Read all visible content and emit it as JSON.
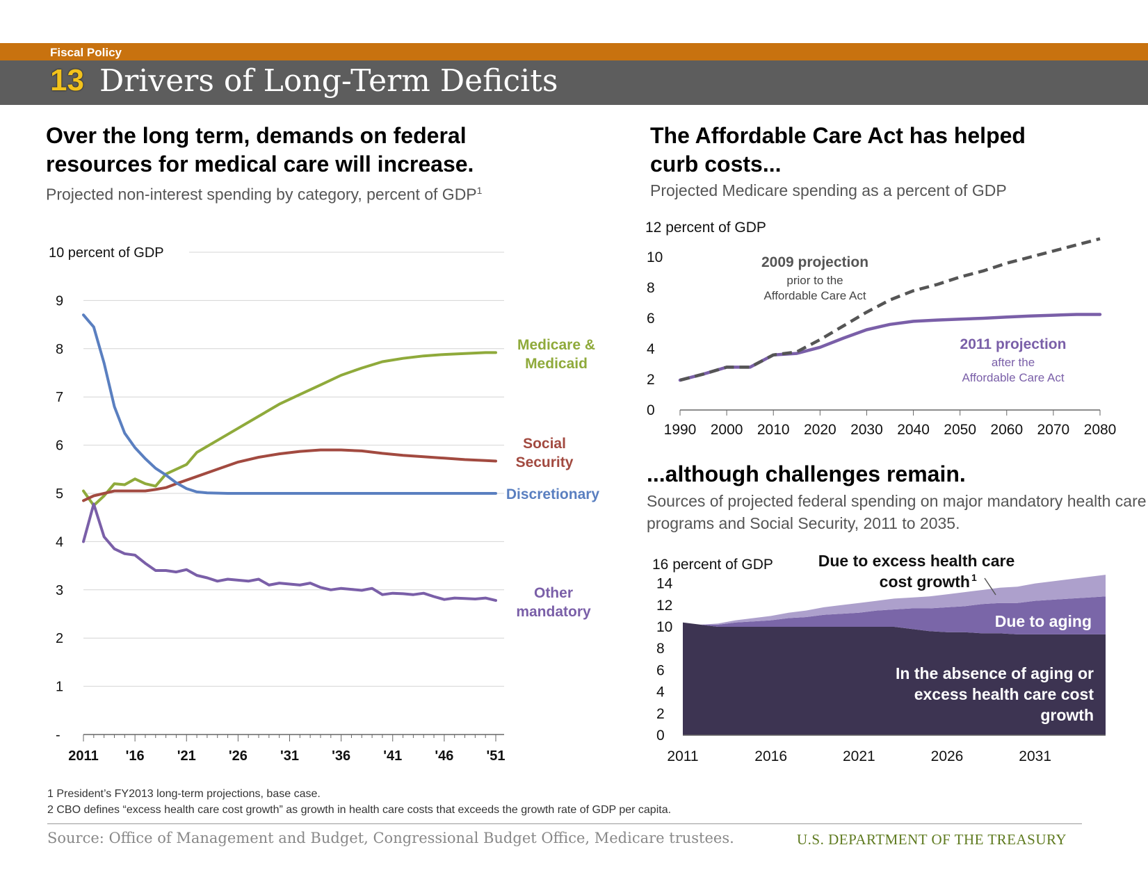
{
  "header": {
    "section": "Fiscal Policy",
    "number": "13",
    "title": "Drivers of Long-Term Deficits"
  },
  "left_panel": {
    "headline_line1": "Over the long term, demands on federal",
    "headline_line2": "resources for medical care will increase.",
    "subtitle": "Projected non-interest spending by category, percent of GDP",
    "subtitle_note": "1"
  },
  "right_top_panel": {
    "headline_line1": "The Affordable Care Act has helped",
    "headline_line2": "curb costs..."
  },
  "right_bottom_panel": {
    "headline": "...although challenges remain.",
    "subtitle_line1": "Sources of projected federal spending on major mandatory health care",
    "subtitle_line2": "programs and Social Security, 2011 to 2035."
  },
  "footnotes": {
    "note1": "1 President’s FY2013 long-term projections, base case.",
    "note2": "2 CBO defines “excess health care cost growth” as growth in health care costs that exceeds the growth rate of GDP per capita."
  },
  "source": "Source: Office of Management and Budget, Congressional Budget Office, Medicare trustees.",
  "department": "U.S. DEPARTMENT OF THE TREASURY",
  "chart_data": [
    {
      "type": "line",
      "ylabel": "10 percent of GDP",
      "yticks": [
        "-",
        "1",
        "2",
        "3",
        "4",
        "5",
        "6",
        "7",
        "8",
        "9"
      ],
      "ylim": [
        0,
        10
      ],
      "xlim": [
        2011,
        2051
      ],
      "xticks": [
        2011,
        2016,
        2021,
        2026,
        2031,
        2036,
        2041,
        2046,
        2051
      ],
      "xtick_labels": [
        "2011",
        "'16",
        "'21",
        "'26",
        "'31",
        "'36",
        "'41",
        "'46",
        "'51"
      ],
      "grid": true,
      "series": [
        {
          "name": "Medicare & Medicaid",
          "label_lines": [
            "Medicare &",
            "Medicaid"
          ],
          "color": "#8faa3b",
          "x": [
            2011,
            2012,
            2013,
            2014,
            2015,
            2016,
            2017,
            2018,
            2019,
            2020,
            2021,
            2022,
            2024,
            2026,
            2028,
            2030,
            2032,
            2034,
            2036,
            2038,
            2040,
            2042,
            2044,
            2046,
            2048,
            2050,
            2051
          ],
          "y": [
            5.05,
            4.75,
            4.95,
            5.2,
            5.18,
            5.3,
            5.2,
            5.15,
            5.4,
            5.5,
            5.6,
            5.85,
            6.1,
            6.35,
            6.6,
            6.85,
            7.05,
            7.25,
            7.45,
            7.6,
            7.73,
            7.8,
            7.85,
            7.88,
            7.9,
            7.92,
            7.92
          ]
        },
        {
          "name": "Social Security",
          "label_lines": [
            "Social",
            "Security"
          ],
          "color": "#a24a40",
          "x": [
            2011,
            2012,
            2013,
            2014,
            2015,
            2016,
            2017,
            2018,
            2019,
            2020,
            2022,
            2024,
            2026,
            2028,
            2030,
            2032,
            2034,
            2036,
            2038,
            2040,
            2042,
            2044,
            2046,
            2048,
            2050,
            2051
          ],
          "y": [
            4.85,
            4.95,
            5.0,
            5.05,
            5.05,
            5.05,
            5.05,
            5.08,
            5.12,
            5.2,
            5.35,
            5.5,
            5.65,
            5.75,
            5.82,
            5.87,
            5.9,
            5.9,
            5.88,
            5.83,
            5.79,
            5.76,
            5.73,
            5.7,
            5.68,
            5.67
          ]
        },
        {
          "name": "Discretionary",
          "label_lines": [
            "Discretionary"
          ],
          "color": "#5a7fc0",
          "x": [
            2011,
            2012,
            2013,
            2014,
            2015,
            2016,
            2017,
            2018,
            2019,
            2020,
            2021,
            2022,
            2023,
            2025,
            2030,
            2035,
            2040,
            2045,
            2051
          ],
          "y": [
            8.7,
            8.45,
            7.7,
            6.8,
            6.25,
            5.95,
            5.72,
            5.52,
            5.38,
            5.22,
            5.1,
            5.03,
            5.01,
            5.0,
            5.0,
            5.0,
            5.0,
            5.0,
            5.0
          ]
        },
        {
          "name": "Other mandatory",
          "label_lines": [
            "Other",
            "mandatory"
          ],
          "color": "#7a5fa8",
          "x": [
            2011,
            2012,
            2013,
            2014,
            2015,
            2016,
            2017,
            2018,
            2019,
            2020,
            2021,
            2022,
            2023,
            2024,
            2025,
            2026,
            2027,
            2028,
            2029,
            2030,
            2031,
            2032,
            2033,
            2034,
            2035,
            2036,
            2037,
            2038,
            2039,
            2040,
            2041,
            2042,
            2043,
            2044,
            2045,
            2046,
            2047,
            2048,
            2049,
            2050,
            2051
          ],
          "y": [
            4.0,
            4.78,
            4.1,
            3.85,
            3.75,
            3.72,
            3.55,
            3.4,
            3.4,
            3.37,
            3.42,
            3.3,
            3.25,
            3.18,
            3.22,
            3.2,
            3.18,
            3.22,
            3.1,
            3.14,
            3.12,
            3.1,
            3.14,
            3.05,
            3.0,
            3.03,
            3.01,
            2.99,
            3.03,
            2.9,
            2.93,
            2.92,
            2.9,
            2.93,
            2.86,
            2.8,
            2.83,
            2.82,
            2.81,
            2.83,
            2.78
          ]
        }
      ]
    },
    {
      "type": "line",
      "subtitle": "Projected Medicare spending as a percent of GDP",
      "ylabel": "12 percent of GDP",
      "yticks": [
        "0",
        "2",
        "4",
        "6",
        "8",
        "10"
      ],
      "ylim": [
        0,
        12
      ],
      "xlim": [
        1990,
        2080
      ],
      "xticks": [
        1990,
        2000,
        2010,
        2020,
        2030,
        2040,
        2050,
        2060,
        2070,
        2080
      ],
      "series": [
        {
          "name": "2009 projection",
          "note_lines": [
            "prior to the",
            "Affordable Care Act"
          ],
          "style": "dashed",
          "color": "#555555",
          "x": [
            1990,
            1995,
            2000,
            2005,
            2010,
            2015,
            2020,
            2025,
            2030,
            2035,
            2040,
            2045,
            2050,
            2055,
            2060,
            2065,
            2070,
            2075,
            2080
          ],
          "y": [
            1.95,
            2.35,
            2.8,
            2.8,
            3.6,
            3.8,
            4.6,
            5.5,
            6.4,
            7.2,
            7.8,
            8.2,
            8.7,
            9.1,
            9.6,
            10.0,
            10.4,
            10.8,
            11.2
          ]
        },
        {
          "name": "2011 projection",
          "note_lines": [
            "after the",
            "Affordable Care Act"
          ],
          "style": "solid",
          "color": "#7a5fa8",
          "x": [
            1990,
            1995,
            2000,
            2005,
            2010,
            2015,
            2020,
            2025,
            2030,
            2035,
            2040,
            2045,
            2050,
            2055,
            2060,
            2065,
            2070,
            2075,
            2080
          ],
          "y": [
            1.95,
            2.35,
            2.8,
            2.8,
            3.6,
            3.7,
            4.1,
            4.7,
            5.25,
            5.6,
            5.8,
            5.88,
            5.94,
            6.0,
            6.08,
            6.15,
            6.2,
            6.25,
            6.25
          ]
        }
      ]
    },
    {
      "type": "area",
      "ylabel": "16 percent of GDP",
      "yticks": [
        "0",
        "2",
        "4",
        "6",
        "8",
        "10",
        "12",
        "14"
      ],
      "ylim": [
        0,
        16
      ],
      "xlim": [
        2011,
        2035
      ],
      "xticks": [
        2011,
        2016,
        2021,
        2026,
        2031
      ],
      "stacked": true,
      "x": [
        2011,
        2012,
        2013,
        2014,
        2015,
        2016,
        2017,
        2018,
        2019,
        2020,
        2021,
        2022,
        2023,
        2024,
        2025,
        2026,
        2027,
        2028,
        2029,
        2030,
        2031,
        2032,
        2033,
        2034,
        2035
      ],
      "series": [
        {
          "name": "In the absence of aging or excess health care cost growth",
          "label_lines": [
            "In the absence of aging or",
            "excess health care cost",
            "growth"
          ],
          "color": "#3d3452",
          "values": [
            10.4,
            10.2,
            10.0,
            10.0,
            10.0,
            10.0,
            10.0,
            10.0,
            10.0,
            10.0,
            10.0,
            10.0,
            10.0,
            9.8,
            9.6,
            9.5,
            9.5,
            9.4,
            9.4,
            9.3,
            9.3,
            9.3,
            9.3,
            9.3,
            9.3
          ]
        },
        {
          "name": "Due to aging",
          "label_lines": [
            "Due to aging"
          ],
          "color": "#7a66a8",
          "values": [
            0.0,
            0.0,
            0.2,
            0.4,
            0.5,
            0.6,
            0.8,
            0.9,
            1.1,
            1.2,
            1.3,
            1.5,
            1.6,
            1.9,
            2.1,
            2.3,
            2.4,
            2.7,
            2.8,
            2.9,
            3.1,
            3.2,
            3.3,
            3.4,
            3.5
          ]
        },
        {
          "name": "Due to excess health care cost growth",
          "label_lines": [
            "Due to excess  health care",
            "cost growth"
          ],
          "label_note": "1",
          "color": "#ada0cc",
          "values": [
            0.0,
            0.0,
            0.1,
            0.2,
            0.3,
            0.4,
            0.5,
            0.6,
            0.7,
            0.8,
            0.9,
            0.9,
            1.0,
            1.0,
            1.1,
            1.2,
            1.3,
            1.3,
            1.4,
            1.5,
            1.6,
            1.7,
            1.8,
            1.9,
            2.0
          ]
        }
      ]
    }
  ]
}
